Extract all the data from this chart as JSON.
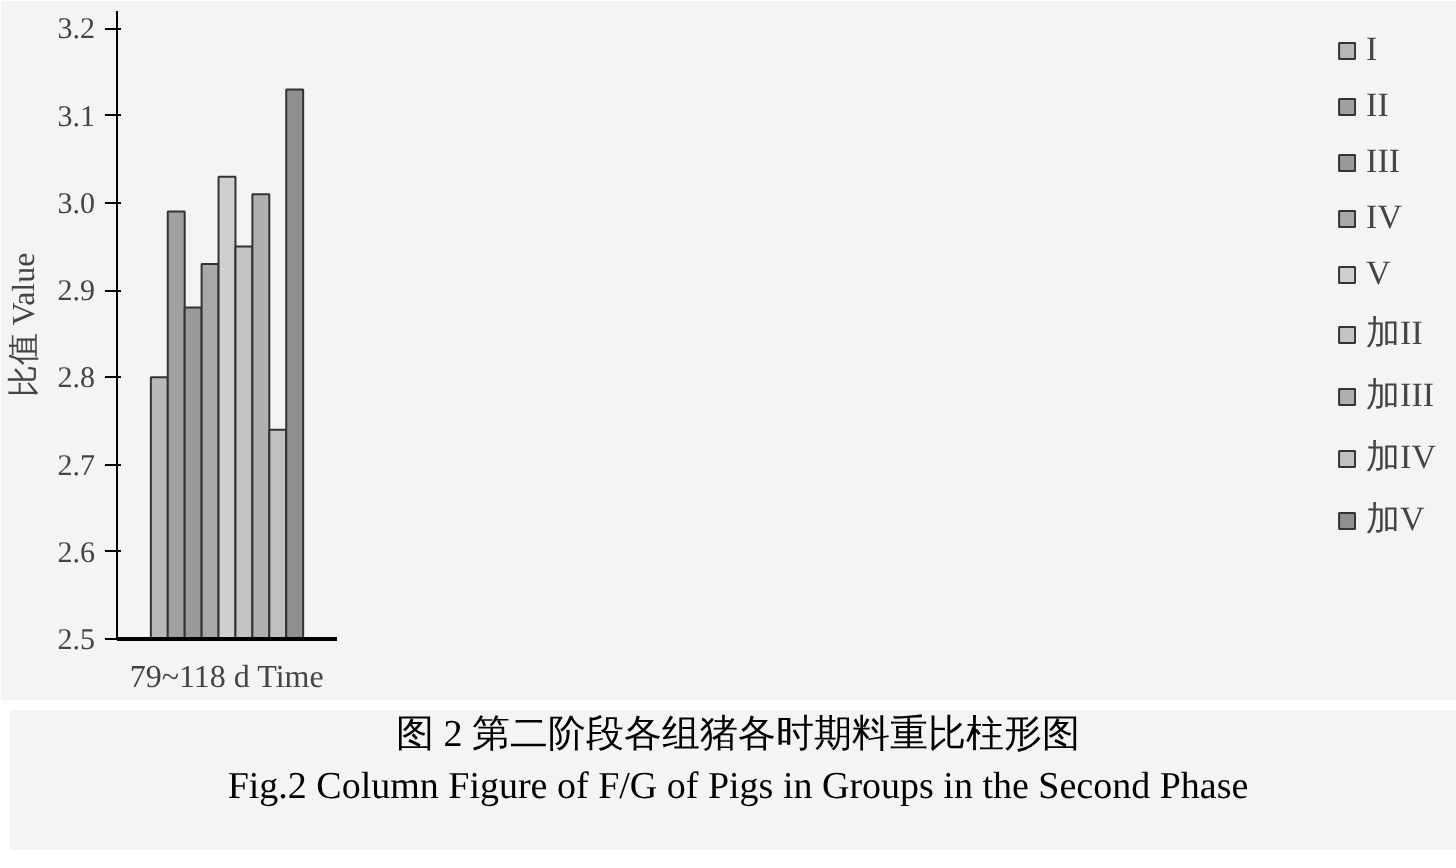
{
  "chart_data": {
    "type": "bar",
    "title": "图 2 第二阶段各组猪各时期料重比柱形图",
    "subtitle": "Fig.2 Column Figure of F/G of Pigs in Groups in the Second Phase",
    "xlabel": "79~118 d Time",
    "ylabel": "比值 Value",
    "categories": [
      null
    ],
    "series": [
      {
        "name": "I",
        "color": "#b8b8b8",
        "values": [
          2.8
        ]
      },
      {
        "name": "II",
        "color": "#a0a0a0",
        "values": [
          2.99
        ]
      },
      {
        "name": "III",
        "color": "#999999",
        "values": [
          2.88
        ]
      },
      {
        "name": "IV",
        "color": "#a8a8a8",
        "values": [
          2.93
        ]
      },
      {
        "name": "V",
        "color": "#cfcfcf",
        "values": [
          3.03
        ]
      },
      {
        "name": "加II",
        "color": "#c4c4c4",
        "values": [
          2.95
        ]
      },
      {
        "name": "加III",
        "color": "#b0b0b0",
        "values": [
          3.01
        ]
      },
      {
        "name": "加IV",
        "color": "#c0c0c0",
        "values": [
          2.74
        ]
      },
      {
        "name": "加V",
        "color": "#8f8f8f",
        "values": [
          3.13
        ]
      }
    ],
    "ylim": [
      2.5,
      3.22
    ],
    "yticks": [
      2.5,
      2.6,
      2.7,
      2.8,
      2.9,
      {
        "value": 3.0,
        "label": "3.0"
      },
      3.1,
      3.2
    ],
    "grid": false,
    "legend": "right",
    "tick_labels": "y"
  }
}
